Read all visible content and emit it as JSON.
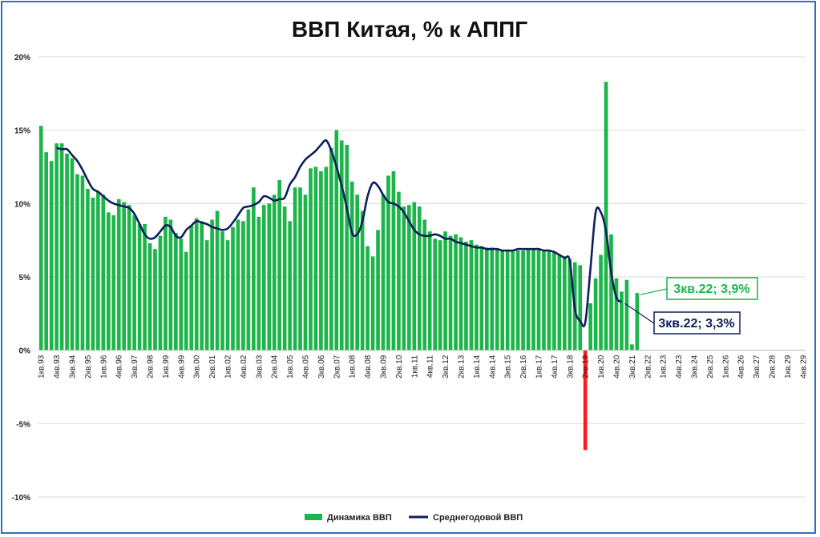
{
  "chart_data": {
    "type": "bar",
    "title": "ВВП Китая, % к АППГ",
    "ylim": [
      -10,
      20
    ],
    "ytick_labels": [
      "20%",
      "15%",
      "10%",
      "5%",
      "0%",
      "-5%",
      "-10%"
    ],
    "ytick_values": [
      20,
      15,
      10,
      5,
      0,
      -5,
      -10
    ],
    "grid": true,
    "x_labels": [
      "1кв.93",
      "4кв.93",
      "3кв.94",
      "2кв.95",
      "1кв.96",
      "4кв.96",
      "3кв.97",
      "2кв.98",
      "1кв.99",
      "4кв.99",
      "3кв.00",
      "2кв.01",
      "1кв.02",
      "4кв.02",
      "3кв.03",
      "2кв.04",
      "1кв.05",
      "4кв.05",
      "3кв.06",
      "2кв.07",
      "1кв.08",
      "4кв.08",
      "3кв.09",
      "2кв.10",
      "1кв.11",
      "4кв.11",
      "3кв.12",
      "2кв.13",
      "1кв.14",
      "4кв.14",
      "3кв.15",
      "2кв.16",
      "1кв.17",
      "4кв.17",
      "3кв.18",
      "2кв.19",
      "1кв.20",
      "4кв.20",
      "3кв.21",
      "2кв.22",
      "1кв.23",
      "4кв.23",
      "3кв.24",
      "2кв.25",
      "1кв.26",
      "4кв.26",
      "3кв.27",
      "2кв.28",
      "1кв.29",
      "4кв.29"
    ],
    "highlight_label": "1кв.20",
    "legend_position": "bottom",
    "series": [
      {
        "name": "Динамика ВВП",
        "color": "#1db44a",
        "values": [
          15.3,
          13.5,
          12.9,
          14.1,
          14.1,
          13.4,
          13.1,
          12.0,
          11.9,
          11.0,
          10.4,
          10.8,
          10.6,
          9.4,
          9.2,
          10.3,
          10.1,
          9.9,
          9.2,
          8.6,
          8.6,
          7.3,
          6.9,
          7.8,
          9.1,
          8.9,
          8.0,
          7.6,
          6.7,
          8.5,
          9.0,
          8.8,
          7.5,
          8.9,
          9.5,
          8.1,
          7.5,
          8.4,
          8.9,
          8.8,
          9.6,
          11.1,
          9.1,
          9.9,
          10.0,
          10.6,
          11.6,
          9.8,
          8.8,
          11.1,
          11.1,
          10.6,
          12.4,
          12.5,
          12.2,
          12.5,
          13.8,
          15.0,
          14.3,
          14.0,
          11.5,
          10.6,
          9.5,
          7.1,
          6.4,
          8.2,
          10.6,
          11.9,
          12.2,
          10.8,
          9.8,
          9.9,
          10.1,
          9.8,
          8.9,
          8.1,
          7.6,
          7.5,
          8.1,
          7.8,
          7.9,
          7.7,
          7.4,
          7.5,
          7.2,
          7.1,
          7.0,
          7.0,
          6.9,
          6.8,
          6.8,
          6.8,
          6.8,
          6.8,
          6.9,
          6.9,
          6.9,
          6.8,
          6.8,
          6.7,
          6.5,
          6.4,
          6.2,
          6.0,
          5.8,
          -6.8,
          3.2,
          4.9,
          6.5,
          18.3,
          7.9,
          4.9,
          4.0,
          4.8,
          0.4,
          3.9
        ]
      },
      {
        "name": "Среднегодовой ВВП",
        "color": "#0d1f5c",
        "values": [
          null,
          null,
          null,
          13.8,
          13.7,
          13.7,
          13.3,
          12.9,
          12.3,
          11.6,
          11.0,
          10.8,
          10.5,
          10.2,
          10.0,
          9.9,
          9.8,
          9.7,
          9.3,
          8.6,
          7.9,
          7.6,
          7.7,
          8.1,
          8.5,
          8.4,
          7.8,
          7.7,
          8.2,
          8.5,
          8.8,
          8.7,
          8.6,
          8.4,
          8.3,
          8.2,
          8.3,
          8.7,
          9.2,
          9.7,
          9.8,
          9.9,
          10.1,
          10.5,
          10.4,
          10.2,
          10.3,
          10.4,
          11.3,
          11.8,
          12.5,
          13.0,
          13.3,
          13.6,
          14.0,
          14.3,
          13.6,
          12.5,
          11.2,
          9.7,
          8.0,
          7.9,
          8.8,
          10.5,
          11.4,
          11.2,
          10.6,
          10.1,
          10.0,
          9.8,
          9.4,
          8.8,
          8.2,
          7.9,
          7.8,
          7.8,
          7.9,
          7.8,
          7.6,
          7.6,
          7.4,
          7.3,
          7.2,
          7.1,
          7.0,
          7.0,
          6.9,
          6.9,
          6.9,
          6.8,
          6.8,
          6.8,
          6.9,
          6.9,
          6.9,
          6.9,
          6.9,
          6.8,
          6.8,
          6.7,
          6.5,
          6.3,
          6.1,
          2.8,
          2.0,
          1.9,
          5.6,
          9.4,
          9.4,
          8.1,
          5.3,
          3.6,
          3.3
        ]
      }
    ],
    "annotations": [
      {
        "text": "3кв.22; 3,9%",
        "color": "#1db44a"
      },
      {
        "text": "3кв.22; 3,3%",
        "color": "#0d1f5c"
      }
    ],
    "highlight_color": "#ff1a1a",
    "gridline_color": "#d9d9d9"
  }
}
